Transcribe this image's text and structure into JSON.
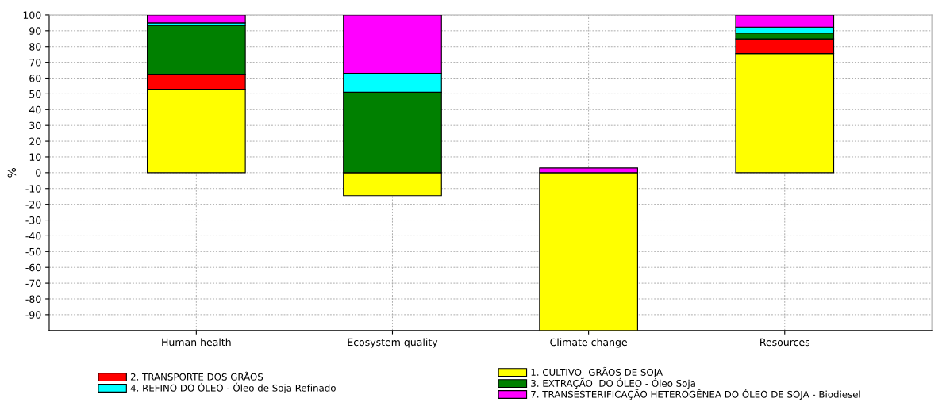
{
  "chart_data": {
    "type": "bar",
    "stacked": true,
    "ylabel": "%",
    "categories": [
      "Human health",
      "Ecosystem quality",
      "Climate change",
      "Resources"
    ],
    "series": [
      {
        "name": "1. CULTIVO- GRÃOS DE SOJA",
        "color": "#ffff00",
        "values": [
          53,
          -14.5,
          -100,
          75.5
        ]
      },
      {
        "name": "2. TRANSPORTE DOS GRÃOS",
        "color": "#ff0000",
        "values": [
          9.5,
          0,
          0,
          9.3
        ]
      },
      {
        "name": "3. EXTRAÇÃO  DO ÓLEO - Óleo Soja",
        "color": "#008000",
        "values": [
          31,
          51,
          0,
          3.8
        ]
      },
      {
        "name": "4. REFINO DO ÓLEO - Óleo de Soja Refinado",
        "color": "#00ffff",
        "values": [
          1.5,
          12,
          0,
          3.7
        ]
      },
      {
        "name": "7. TRANSESTERIFICAÇÃO HETEROGÊNEA DO ÓLEO DE SOJA - Biodiesel",
        "color": "#ff00ff",
        "values": [
          5,
          37,
          3,
          7.7
        ]
      }
    ],
    "ylim": [
      -100,
      100
    ],
    "yticks": [
      -90,
      -80,
      -70,
      -60,
      -50,
      -40,
      -30,
      -20,
      -10,
      0,
      10,
      20,
      30,
      40,
      50,
      60,
      70,
      80,
      90,
      100
    ],
    "grid": true,
    "legend": "bottom"
  }
}
